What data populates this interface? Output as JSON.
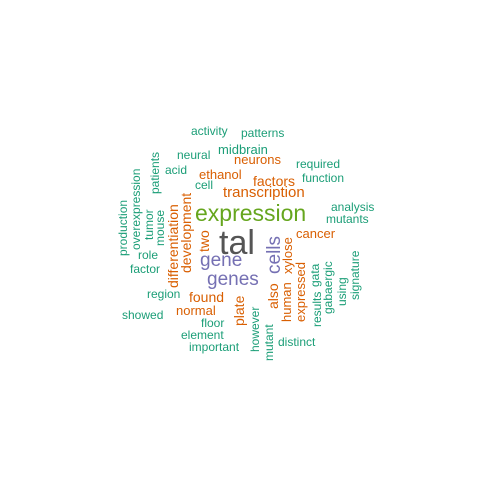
{
  "colors": {
    "teal": "#1b9e77",
    "orange": "#d95f02",
    "purple": "#7570b3",
    "green": "#66a61e",
    "dark": "#555555"
  },
  "words": [
    "tal",
    "expression",
    "gene",
    "genes",
    "cells",
    "transcription",
    "factors",
    "development",
    "differentiation",
    "two",
    "found",
    "normal",
    "plate",
    "also",
    "human",
    "xylose",
    "expressed",
    "cancer",
    "ethanol",
    "neurons",
    "midbrain",
    "activity",
    "patterns",
    "neural",
    "required",
    "function",
    "analysis",
    "mutants",
    "acid",
    "cell",
    "patients",
    "tumor",
    "mouse",
    "overexpression",
    "production",
    "role",
    "factor",
    "region",
    "showed",
    "floor",
    "element",
    "important",
    "however",
    "mutant",
    "distinct",
    "results",
    "gata",
    "gabaergic",
    "using",
    "signature"
  ]
}
